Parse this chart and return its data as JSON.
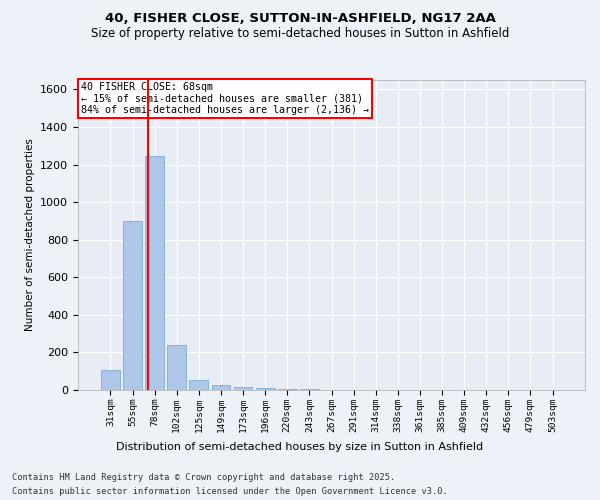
{
  "title1": "40, FISHER CLOSE, SUTTON-IN-ASHFIELD, NG17 2AA",
  "title2": "Size of property relative to semi-detached houses in Sutton in Ashfield",
  "xlabel": "Distribution of semi-detached houses by size in Sutton in Ashfield",
  "ylabel": "Number of semi-detached properties",
  "categories": [
    "31sqm",
    "55sqm",
    "78sqm",
    "102sqm",
    "125sqm",
    "149sqm",
    "173sqm",
    "196sqm",
    "220sqm",
    "243sqm",
    "267sqm",
    "291sqm",
    "314sqm",
    "338sqm",
    "361sqm",
    "385sqm",
    "409sqm",
    "432sqm",
    "456sqm",
    "479sqm",
    "503sqm"
  ],
  "values": [
    105,
    900,
    1245,
    240,
    55,
    25,
    15,
    10,
    5,
    3,
    2,
    1,
    0,
    0,
    0,
    0,
    0,
    0,
    0,
    0,
    0
  ],
  "bar_color": "#aec6e8",
  "bar_edge_color": "#7bafd4",
  "vline_x": 1.68,
  "vline_color": "red",
  "annotation_title": "40 FISHER CLOSE: 68sqm",
  "annotation_line1": "← 15% of semi-detached houses are smaller (381)",
  "annotation_line2": "84% of semi-detached houses are larger (2,136) →",
  "ylim": [
    0,
    1650
  ],
  "yticks": [
    0,
    200,
    400,
    600,
    800,
    1000,
    1200,
    1400,
    1600
  ],
  "footer1": "Contains HM Land Registry data © Crown copyright and database right 2025.",
  "footer2": "Contains public sector information licensed under the Open Government Licence v3.0.",
  "bg_color": "#edf1f8",
  "plot_bg_color": "#e8edf5"
}
